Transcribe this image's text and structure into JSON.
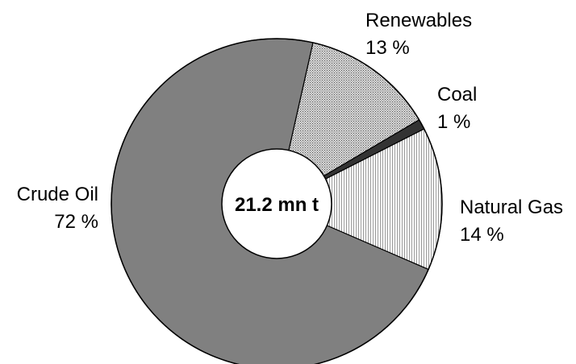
{
  "chart_data": {
    "type": "pie",
    "center_label": "21.2 mn t",
    "slices": [
      {
        "name": "Renewables",
        "value": 13,
        "value_label": "13 %",
        "fill": "#c8c8c8",
        "pattern": "dots"
      },
      {
        "name": "Coal",
        "value": 1,
        "value_label": "1 %",
        "fill": "#333333",
        "pattern": "solid"
      },
      {
        "name": "Natural Gas",
        "value": 14,
        "value_label": "14 %",
        "fill": "#f2f2f2",
        "pattern": "vertical-lines"
      },
      {
        "name": "Crude Oil",
        "value": 72,
        "value_label": "72 %",
        "fill": "#808080",
        "pattern": "solid"
      }
    ]
  }
}
